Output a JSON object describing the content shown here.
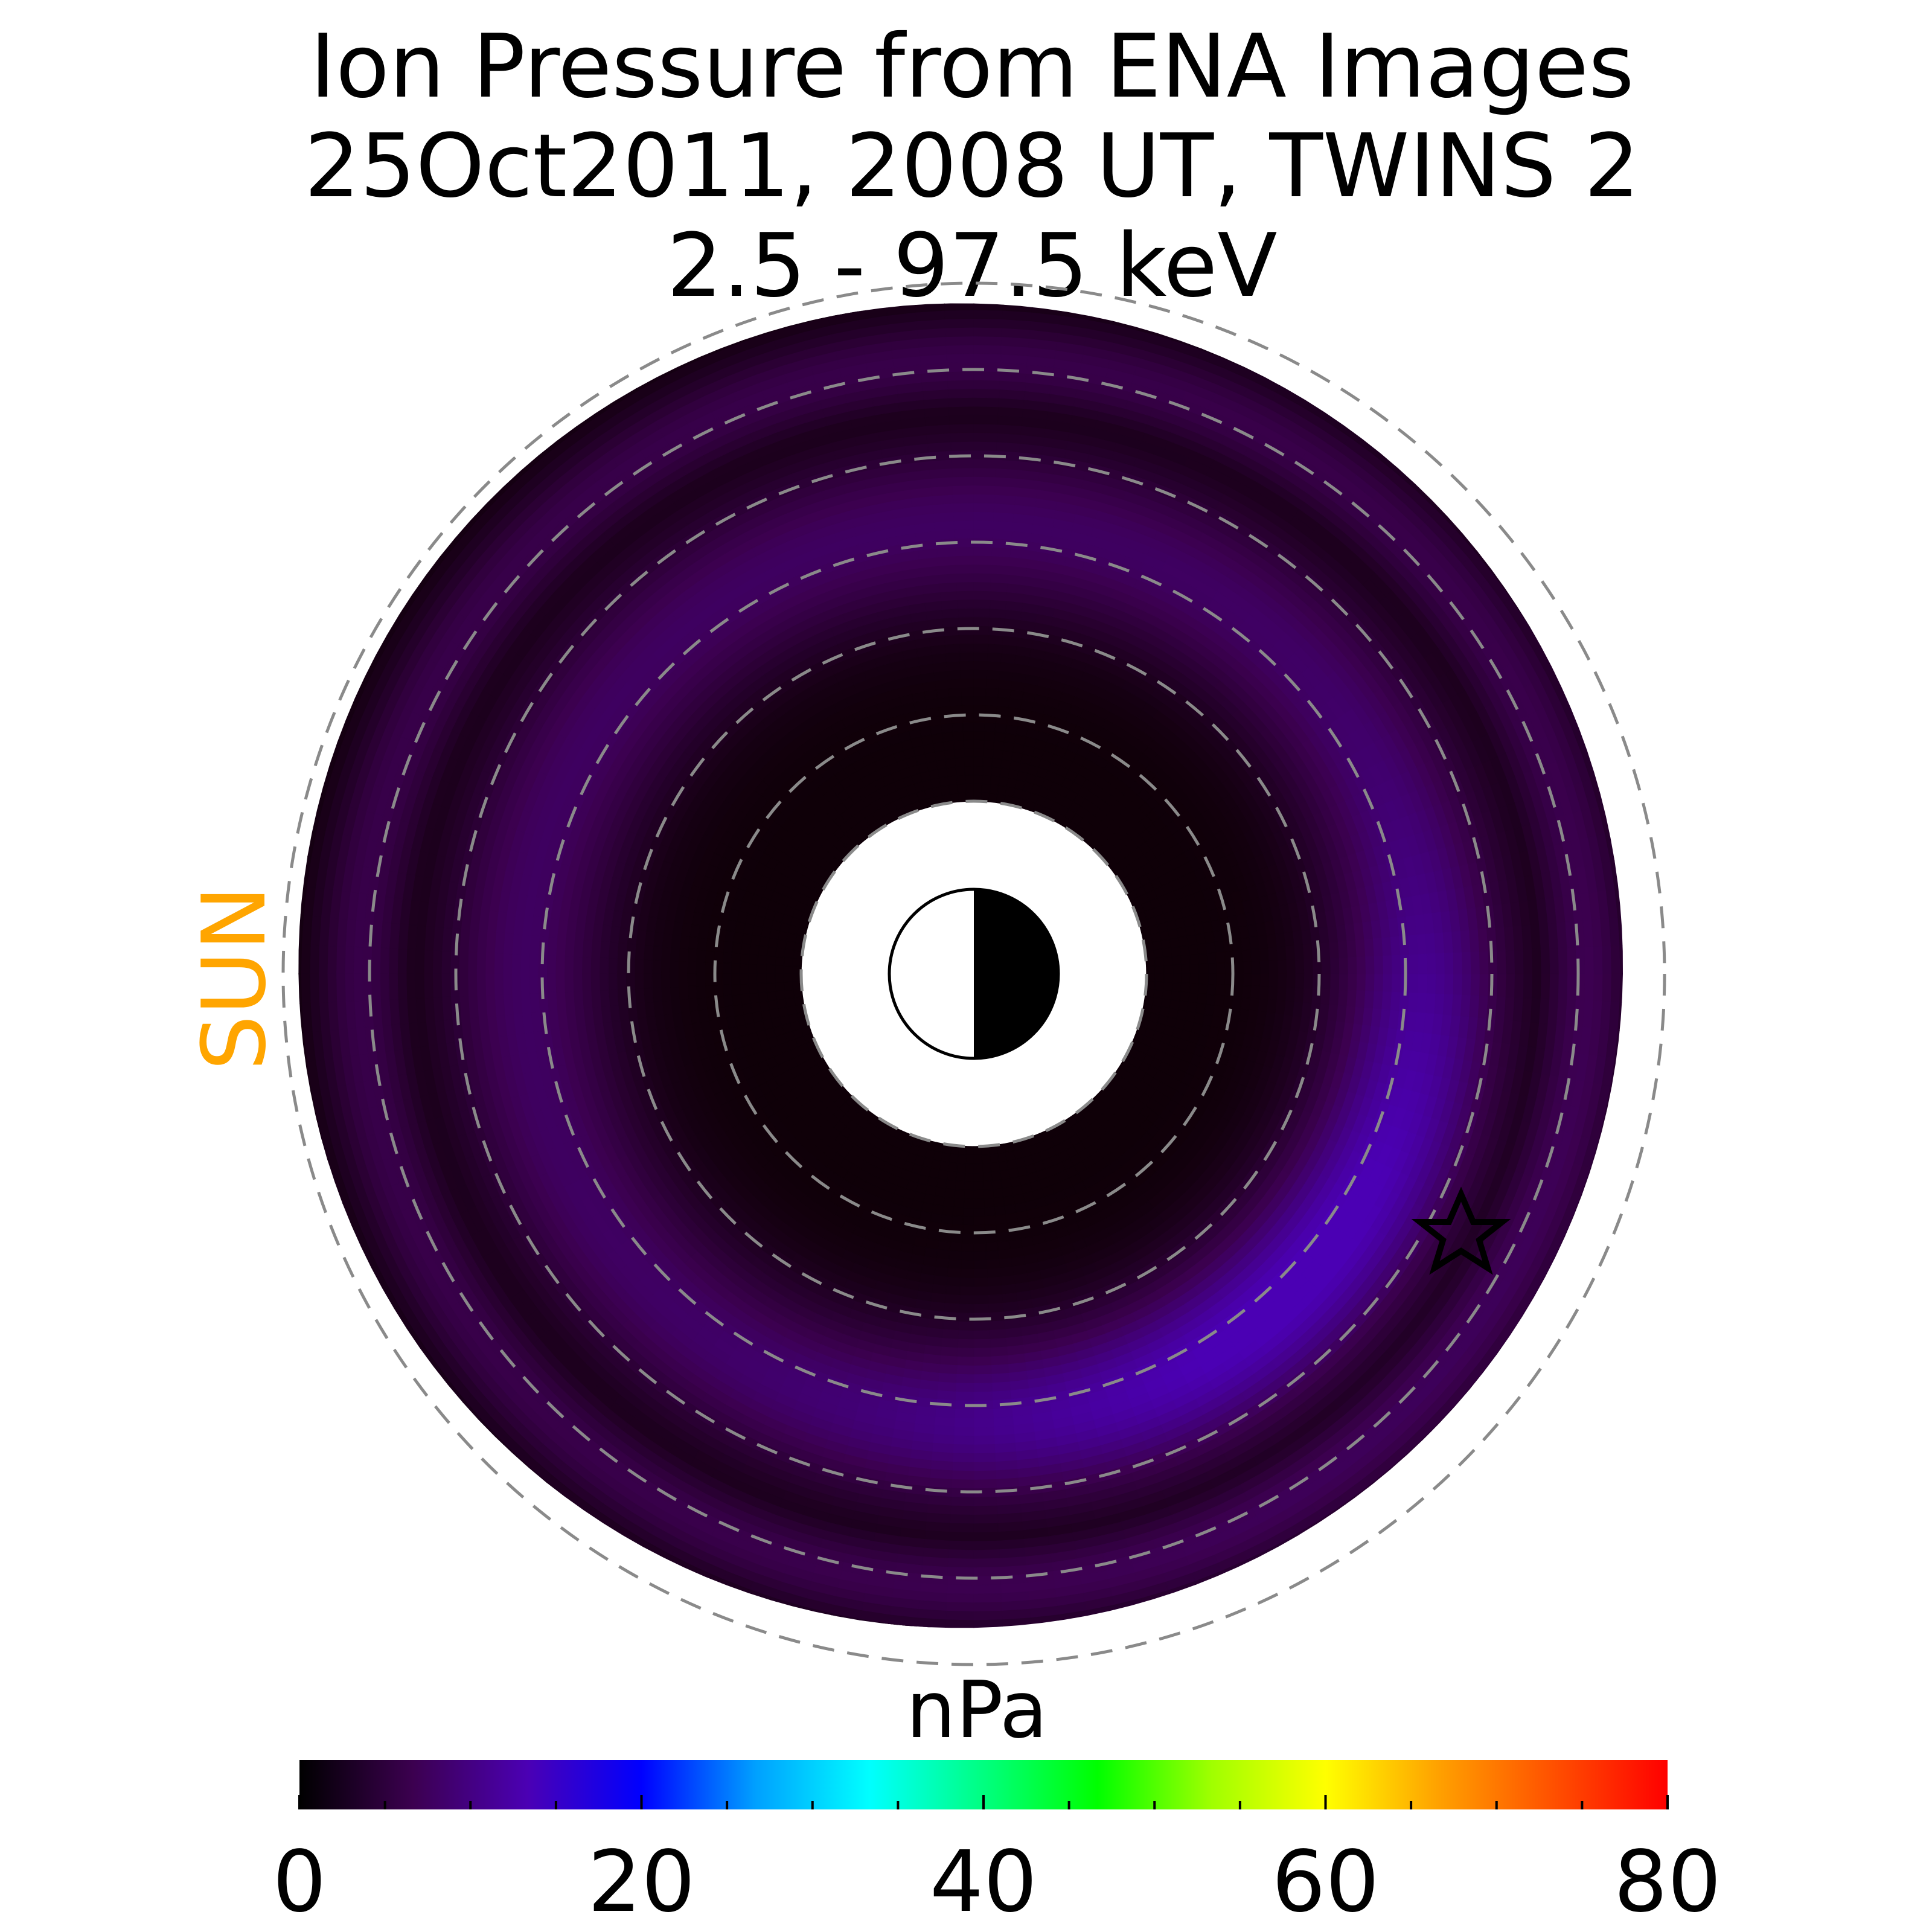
{
  "chart_data": {
    "type": "heatmap",
    "title_lines": [
      "Ion Pressure from  ENA Images",
      "25Oct2011, 2008 UT,  TWINS 2",
      "2.5 - 97.5 keV"
    ],
    "sun_label": "SUN",
    "sun_label_color": "#ffa500",
    "colorbar": {
      "label": "nPa",
      "range": [
        0,
        80
      ],
      "ticks": [
        0,
        20,
        40,
        60,
        80
      ],
      "tick_labels": [
        "0",
        "20",
        "40",
        "60",
        "80"
      ],
      "minor_tick_step": 5,
      "colormap_name": "rainbow-black",
      "colormap": [
        "#000000",
        "#3c0050",
        "#4b00b4",
        "#0000ff",
        "#00a0ff",
        "#00ffff",
        "#00ff80",
        "#00ff00",
        "#a0ff00",
        "#ffff00",
        "#ffa000",
        "#ff5000",
        "#ff0000"
      ]
    },
    "radial_range": [
      2,
      8
    ],
    "dashed_circle_radii": [
      2,
      3,
      4,
      5,
      6,
      7,
      8
    ],
    "map": {
      "inner_radius_max": 2.4,
      "outer_radius_max": 7.85,
      "pressure_peak_max": 12,
      "pressure_peak_location": "dusk / midnight sector, around 2.5 Re from the inner boundary",
      "colors": {
        "low": "#0f0008",
        "mid": "#3c0050",
        "high": "#4b00b4"
      }
    },
    "earth_marker": "half-lit circle, dayside toward SUN",
    "spacecraft_marker": "star",
    "grid_line_color": "#8a8a8a"
  }
}
